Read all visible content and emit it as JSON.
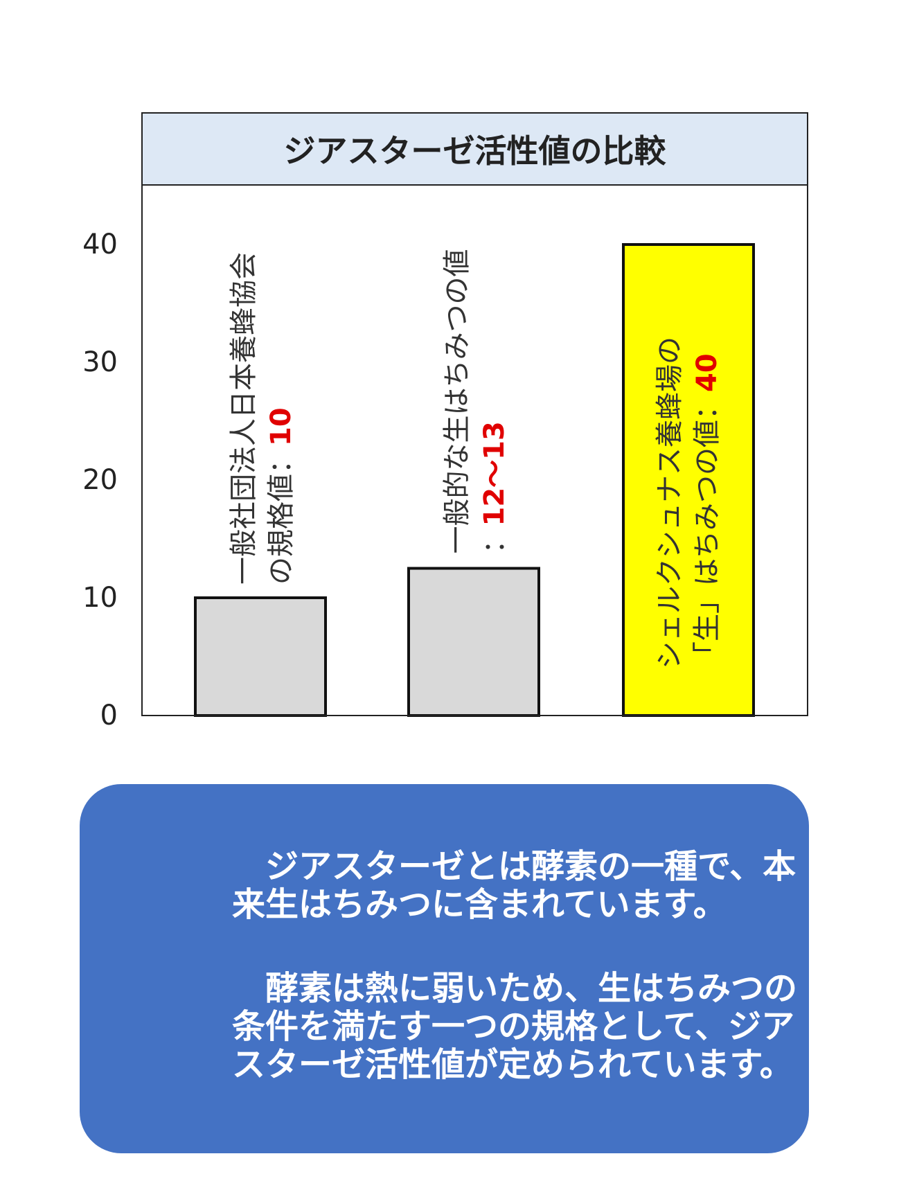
{
  "chart_data": {
    "type": "bar",
    "title": "ジアスターゼ活性値の比較",
    "categories": [
      "一般社団法人日本養蜂協会の規格値",
      "一般的な生はちみつの値",
      "シェルクシュナス養蜂場の「生」はちみつの値"
    ],
    "values": [
      10,
      12.5,
      40
    ],
    "colors": [
      "#d9d9d9",
      "#d9d9d9",
      "#ffff00"
    ],
    "ylim": [
      0,
      45
    ],
    "yticks": [
      "0",
      "10",
      "20",
      "30",
      "40"
    ],
    "grid": false,
    "bar_labels": [
      {
        "line1": "一般社団法人日本養蜂協会",
        "line2": "の規格値：",
        "value": "10"
      },
      {
        "line1": "一般的な生はちみつの値",
        "line2": "：",
        "value": "12〜13"
      },
      {
        "line1": "シェルクシュナス養蜂場の",
        "line2": "「生」はちみつの値：",
        "value": "40"
      }
    ]
  },
  "info_box": {
    "paragraphs": [
      "ジアスターゼとは酵素の一種で、本来生はちみつに含まれています。",
      "酵素は熱に弱いため、生はちみつの条件を満たす一つの規格として、ジアスターゼ活性値が定められています。"
    ],
    "color": "#4472c4"
  }
}
